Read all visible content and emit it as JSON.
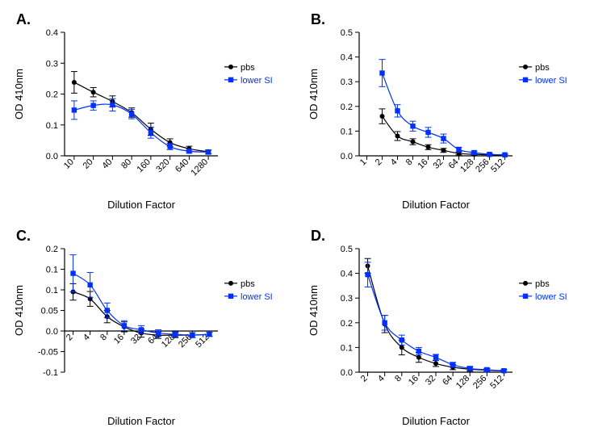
{
  "colors": {
    "pbs": "#000000",
    "lowerSI": "#0030ff",
    "axis": "#000000",
    "bg": "#ffffff"
  },
  "typography": {
    "panel_label_fontsize": 18,
    "panel_label_fontweight": "bold",
    "axis_label_fontsize": 13,
    "tick_fontsize": 11,
    "legend_fontsize": 11
  },
  "marker": {
    "pbs_size": 3.0,
    "lowerSI_size": 3.2,
    "line_width": 1.2,
    "error_cap": 4
  },
  "legend_labels": {
    "pbs": "pbs",
    "lowerSI": "lower SI"
  },
  "axis_labels": {
    "x": "Dilution Factor",
    "y": "OD 410nm"
  },
  "panels": {
    "A": {
      "label": "A.",
      "x_categories": [
        "10",
        "20",
        "40",
        "80",
        "160",
        "320",
        "640",
        "1280"
      ],
      "ylim": [
        0.0,
        0.4
      ],
      "yticks": [
        0.0,
        0.1,
        0.2,
        0.3,
        0.4
      ],
      "legend_pos": "right",
      "series": {
        "pbs": {
          "y": [
            0.238,
            0.206,
            0.176,
            0.14,
            0.086,
            0.043,
            0.023,
            0.013
          ],
          "err": [
            0.035,
            0.015,
            0.018,
            0.015,
            0.02,
            0.012,
            0.008,
            0.006
          ]
        },
        "lowerSI": {
          "y": [
            0.148,
            0.163,
            0.165,
            0.135,
            0.075,
            0.03,
            0.015,
            0.012
          ],
          "err": [
            0.03,
            0.015,
            0.02,
            0.015,
            0.018,
            0.01,
            0.006,
            0.006
          ]
        }
      }
    },
    "B": {
      "label": "B.",
      "x_categories": [
        "2",
        "4",
        "8",
        "16",
        "32",
        "64",
        "128",
        "256",
        "512"
      ],
      "x_leading_tick": "1",
      "ylim": [
        0.0,
        0.5
      ],
      "yticks": [
        0.0,
        0.1,
        0.2,
        0.3,
        0.4,
        0.5
      ],
      "legend_pos": "right",
      "series": {
        "pbs": {
          "y": [
            0.16,
            0.08,
            0.057,
            0.035,
            0.022,
            0.01,
            0.006,
            0.004,
            0.003
          ],
          "err": [
            0.03,
            0.018,
            0.012,
            0.01,
            0.008,
            0.006,
            0.004,
            0.004,
            0.003
          ]
        },
        "lowerSI": {
          "y": [
            0.335,
            0.182,
            0.12,
            0.095,
            0.07,
            0.025,
            0.013,
            0.006,
            0.004
          ],
          "err": [
            0.055,
            0.025,
            0.02,
            0.02,
            0.018,
            0.01,
            0.006,
            0.004,
            0.003
          ]
        }
      }
    },
    "C": {
      "label": "C.",
      "x_categories": [
        "2",
        "4",
        "8",
        "16",
        "32",
        "64",
        "128",
        "256",
        "512"
      ],
      "ylim": [
        -0.1,
        0.2
      ],
      "yticks": [
        -0.1,
        -0.05,
        0.0,
        0.05,
        0.1,
        0.15,
        0.2
      ],
      "legend_pos": "right",
      "axis_at_zero": true,
      "series": {
        "pbs": {
          "y": [
            0.095,
            0.078,
            0.035,
            0.01,
            -0.005,
            -0.01,
            -0.01,
            -0.01,
            -0.008
          ],
          "err": [
            0.02,
            0.018,
            0.015,
            0.012,
            0.01,
            0.008,
            0.006,
            0.006,
            0.005
          ]
        },
        "lowerSI": {
          "y": [
            0.14,
            0.112,
            0.05,
            0.013,
            0.003,
            -0.005,
            -0.008,
            -0.01,
            -0.008
          ],
          "err": [
            0.045,
            0.03,
            0.018,
            0.012,
            0.01,
            0.008,
            0.006,
            0.006,
            0.005
          ]
        }
      }
    },
    "D": {
      "label": "D.",
      "x_categories": [
        "2",
        "4",
        "8",
        "16",
        "32",
        "64",
        "128",
        "256",
        "512"
      ],
      "ylim": [
        0.0,
        0.5
      ],
      "yticks": [
        0.0,
        0.1,
        0.2,
        0.3,
        0.4,
        0.5
      ],
      "legend_pos": "right",
      "series": {
        "pbs": {
          "y": [
            0.43,
            0.195,
            0.1,
            0.06,
            0.035,
            0.02,
            0.012,
            0.008,
            0.005
          ],
          "err": [
            0.03,
            0.035,
            0.03,
            0.02,
            0.012,
            0.01,
            0.008,
            0.006,
            0.005
          ]
        },
        "lowerSI": {
          "y": [
            0.395,
            0.2,
            0.13,
            0.085,
            0.06,
            0.03,
            0.015,
            0.01,
            0.006
          ],
          "err": [
            0.05,
            0.03,
            0.02,
            0.015,
            0.012,
            0.01,
            0.008,
            0.006,
            0.005
          ]
        }
      }
    }
  }
}
